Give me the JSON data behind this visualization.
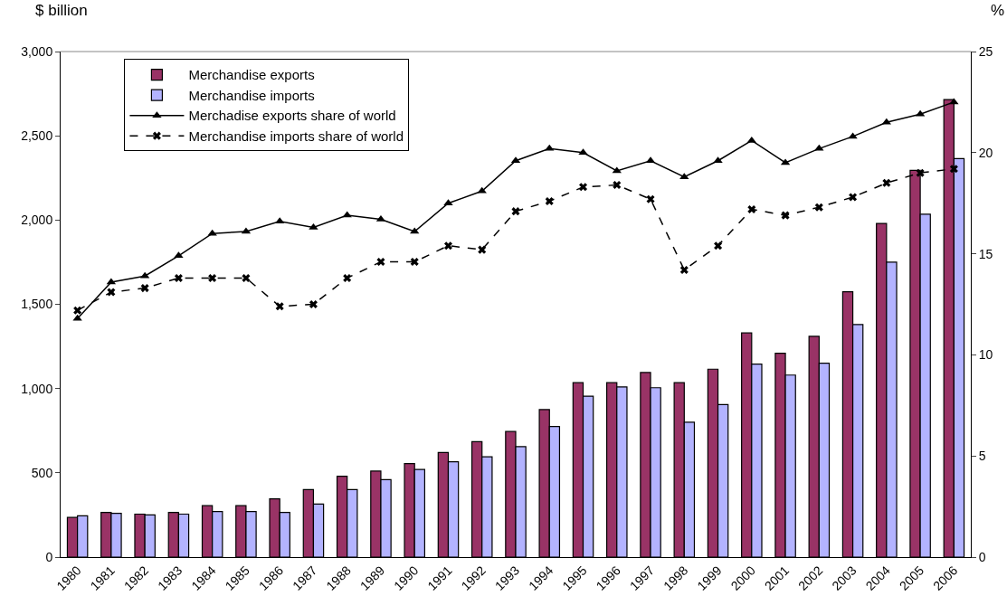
{
  "chart_data": {
    "type": "bar",
    "ylabel": "$ billion",
    "y2label": "%",
    "categories": [
      "1980",
      "1981",
      "1982",
      "1983",
      "1984",
      "1985",
      "1986",
      "1987",
      "1988",
      "1989",
      "1990",
      "1991",
      "1992",
      "1993",
      "1994",
      "1995",
      "1996",
      "1997",
      "1998",
      "1999",
      "2000",
      "2001",
      "2002",
      "2003",
      "2004",
      "2005",
      "2006"
    ],
    "series": [
      {
        "name": "Merchandise exports",
        "color": "#993366",
        "values": [
          235,
          265,
          255,
          265,
          305,
          305,
          345,
          400,
          480,
          510,
          555,
          620,
          685,
          745,
          875,
          1035,
          1035,
          1095,
          1035,
          1115,
          1330,
          1210,
          1310,
          1575,
          1980,
          2295,
          2715
        ]
      },
      {
        "name": "Merchandise imports",
        "color": "#b3b3ff",
        "values": [
          245,
          260,
          250,
          255,
          270,
          270,
          265,
          315,
          400,
          460,
          520,
          565,
          595,
          655,
          775,
          955,
          1010,
          1005,
          800,
          905,
          1145,
          1080,
          1150,
          1380,
          1750,
          2035,
          2365
        ]
      },
      {
        "name": "Merchadise exports share of world",
        "type": "line",
        "axis": "y2",
        "color": "#000000",
        "marker": "triangle",
        "line_style": "solid",
        "values": [
          11.8,
          13.6,
          13.9,
          14.9,
          16.0,
          16.1,
          16.6,
          16.3,
          16.9,
          16.7,
          16.1,
          17.5,
          18.1,
          19.6,
          20.2,
          20.0,
          19.1,
          19.6,
          18.8,
          19.6,
          20.6,
          19.5,
          20.2,
          20.8,
          21.5,
          21.9,
          22.5
        ]
      },
      {
        "name": "Merchandise imports share of world",
        "type": "line",
        "axis": "y2",
        "color": "#000000",
        "marker": "cross",
        "line_style": "dashed",
        "values": [
          12.2,
          13.1,
          13.3,
          13.8,
          13.8,
          13.8,
          12.4,
          12.5,
          13.8,
          14.6,
          14.6,
          15.4,
          15.2,
          17.1,
          17.6,
          18.3,
          18.4,
          17.7,
          14.2,
          15.4,
          17.2,
          16.9,
          17.3,
          17.8,
          18.5,
          19.0,
          19.2
        ]
      }
    ],
    "ylim": [
      0,
      3000
    ],
    "yticks": [
      {
        "value": 0,
        "label": "0"
      },
      {
        "value": 500,
        "label": "500"
      },
      {
        "value": 1000,
        "label": "1,000"
      },
      {
        "value": 1500,
        "label": "1,500"
      },
      {
        "value": 2000,
        "label": "2,000"
      },
      {
        "value": 2500,
        "label": "2,500"
      },
      {
        "value": 3000,
        "label": "3,000"
      }
    ],
    "y2lim": [
      0,
      25
    ],
    "y2ticks": [
      0,
      5,
      10,
      15,
      20,
      25
    ],
    "legend": "top left"
  }
}
